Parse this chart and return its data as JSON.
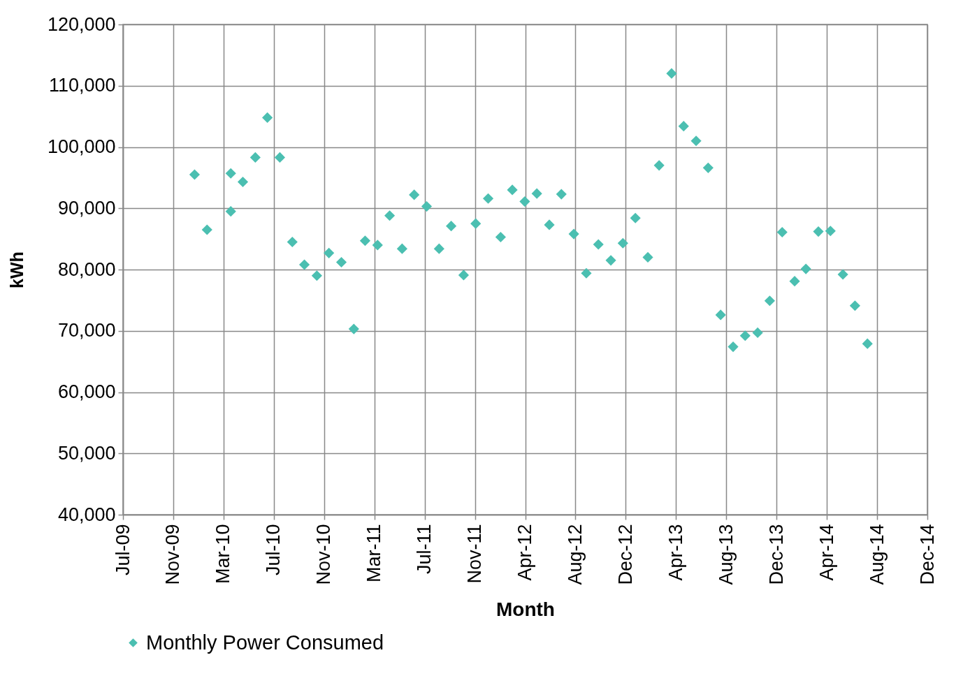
{
  "chart_data": {
    "type": "scatter",
    "xlabel": "Month",
    "ylabel": "kWh",
    "x": [
      "2010-01",
      "2010-02",
      "2010-04",
      "2010-04",
      "2010-05",
      "2010-06",
      "2010-07",
      "2010-08",
      "2010-09",
      "2010-10",
      "2010-11",
      "2010-12",
      "2011-01",
      "2011-02",
      "2011-03",
      "2011-04",
      "2011-05",
      "2011-06",
      "2011-07",
      "2011-08",
      "2011-09",
      "2011-10",
      "2011-11",
      "2011-12",
      "2012-01",
      "2012-02",
      "2012-03",
      "2012-04",
      "2012-05",
      "2012-06",
      "2012-07",
      "2012-08",
      "2012-09",
      "2012-10",
      "2012-11",
      "2012-12",
      "2013-01",
      "2013-02",
      "2013-03",
      "2013-04",
      "2013-05",
      "2013-06",
      "2013-07",
      "2013-08",
      "2013-09",
      "2013-10",
      "2013-11",
      "2013-12",
      "2014-01",
      "2014-02",
      "2014-03",
      "2014-04",
      "2014-05",
      "2014-06",
      "2014-07",
      "2014-08"
    ],
    "series": [
      {
        "name": "Monthly Power Consumed",
        "color": "#4bbfb1",
        "values": [
          95500,
          86500,
          95700,
          89500,
          94300,
          98300,
          104800,
          98300,
          84500,
          80800,
          79000,
          82700,
          81200,
          70300,
          84700,
          84000,
          88800,
          83400,
          92200,
          90300,
          83400,
          87100,
          79100,
          87500,
          91600,
          85300,
          93000,
          91100,
          92400,
          87300,
          92300,
          85800,
          79400,
          84100,
          81500,
          84300,
          88400,
          82000,
          97000,
          112000,
          103400,
          101000,
          96600,
          72600,
          67400,
          69200,
          69700,
          74900,
          86100,
          78100,
          80100,
          86200,
          86300,
          79200,
          74100,
          67900
        ]
      }
    ],
    "xlim": [
      "2009-07-07",
      "2014-12-28"
    ],
    "xticks": [
      {
        "value": "2009-07-07",
        "label": "Jul-09"
      },
      {
        "value": "2009-11-09",
        "label": "Nov-09"
      },
      {
        "value": "2010-03-14",
        "label": "Mar-10"
      },
      {
        "value": "2010-07-17",
        "label": "Jul-10"
      },
      {
        "value": "2010-11-19",
        "label": "Nov-10"
      },
      {
        "value": "2011-03-24",
        "label": "Mar-11"
      },
      {
        "value": "2011-07-27",
        "label": "Jul-11"
      },
      {
        "value": "2011-11-29",
        "label": "Nov-11"
      },
      {
        "value": "2012-04-02",
        "label": "Apr-12"
      },
      {
        "value": "2012-08-05",
        "label": "Aug-12"
      },
      {
        "value": "2012-12-08",
        "label": "Dec-12"
      },
      {
        "value": "2013-04-12",
        "label": "Apr-13"
      },
      {
        "value": "2013-08-15",
        "label": "Aug-13"
      },
      {
        "value": "2013-12-18",
        "label": "Dec-13"
      },
      {
        "value": "2014-04-22",
        "label": "Apr-14"
      },
      {
        "value": "2014-08-25",
        "label": "Aug-14"
      },
      {
        "value": "2014-12-28",
        "label": "Dec-14"
      }
    ],
    "ylim": [
      40000,
      120000
    ],
    "yticks": [
      {
        "value": 40000,
        "label": "40,000"
      },
      {
        "value": 50000,
        "label": "50,000"
      },
      {
        "value": 60000,
        "label": "60,000"
      },
      {
        "value": 70000,
        "label": "70,000"
      },
      {
        "value": 80000,
        "label": "80,000"
      },
      {
        "value": 90000,
        "label": "90,000"
      },
      {
        "value": 100000,
        "label": "100,000"
      },
      {
        "value": 110000,
        "label": "110,000"
      },
      {
        "value": 120000,
        "label": "120,000"
      }
    ],
    "grid": true,
    "legend": "bottom",
    "marker": "diamond"
  }
}
